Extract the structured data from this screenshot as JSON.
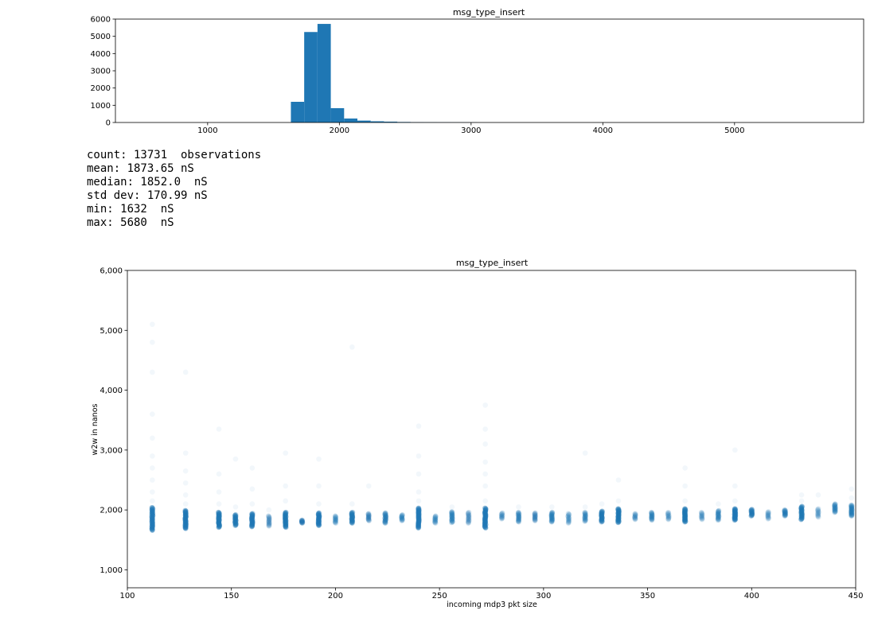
{
  "colors": {
    "bar": "#1f77b4",
    "point": "#1f77b4",
    "axis": "#000000"
  },
  "chart_data": [
    {
      "type": "bar",
      "title": "msg_type_insert",
      "xlabel": "",
      "ylabel": "",
      "xlim": [
        300,
        5980
      ],
      "ylim": [
        0,
        6000
      ],
      "xticks": [
        1000,
        2000,
        3000,
        4000,
        5000
      ],
      "yticks": [
        0,
        1000,
        2000,
        3000,
        4000,
        5000,
        6000
      ],
      "bin_edges": [
        1632,
        1733,
        1834,
        1935,
        2036,
        2137,
        2238,
        2339,
        2440,
        2541,
        2642,
        2743,
        2844,
        2945,
        3046
      ],
      "values": [
        1200,
        5250,
        5720,
        830,
        230,
        110,
        70,
        50,
        30,
        20,
        15,
        12,
        10,
        8
      ]
    },
    {
      "type": "scatter",
      "title": "msg_type_insert",
      "xlabel": "incoming mdp3 pkt size",
      "ylabel": "w2w in nanos",
      "xlim": [
        100,
        450
      ],
      "ylim": [
        700,
        6000
      ],
      "xticks": [
        100,
        150,
        200,
        250,
        300,
        350,
        400,
        450
      ],
      "yticks": [
        1000,
        2000,
        3000,
        4000,
        5000,
        6000
      ],
      "ytick_labels": [
        "1,000",
        "2,000",
        "3,000",
        "4,000",
        "5,000",
        "6,000"
      ],
      "clusters": [
        {
          "x": 112,
          "lo": 1660,
          "hi": 2040,
          "density": 1.0,
          "tail": [
            2150,
            2300,
            2500,
            2700,
            2900,
            3200,
            3600,
            4300,
            4800,
            5100
          ]
        },
        {
          "x": 128,
          "lo": 1690,
          "hi": 1990,
          "density": 1.0,
          "tail": [
            2100,
            2250,
            2450,
            2650,
            2950,
            4300
          ]
        },
        {
          "x": 144,
          "lo": 1710,
          "hi": 1960,
          "density": 0.9,
          "tail": [
            2100,
            2300,
            2600,
            3350
          ]
        },
        {
          "x": 152,
          "lo": 1740,
          "hi": 1920,
          "density": 0.7,
          "tail": [
            2050,
            2850
          ]
        },
        {
          "x": 160,
          "lo": 1720,
          "hi": 1940,
          "density": 0.8,
          "tail": [
            2100,
            2350,
            2700
          ]
        },
        {
          "x": 168,
          "lo": 1730,
          "hi": 1900,
          "density": 0.3,
          "tail": [
            2000
          ]
        },
        {
          "x": 176,
          "lo": 1710,
          "hi": 1960,
          "density": 0.85,
          "tail": [
            2150,
            2400,
            2950
          ]
        },
        {
          "x": 184,
          "lo": 1780,
          "hi": 1830,
          "density": 0.3,
          "tail": []
        },
        {
          "x": 192,
          "lo": 1740,
          "hi": 1950,
          "density": 0.8,
          "tail": [
            2100,
            2400,
            2850
          ]
        },
        {
          "x": 200,
          "lo": 1780,
          "hi": 1900,
          "density": 0.25,
          "tail": []
        },
        {
          "x": 208,
          "lo": 1780,
          "hi": 1960,
          "density": 0.7,
          "tail": [
            2100,
            4720
          ]
        },
        {
          "x": 216,
          "lo": 1820,
          "hi": 1940,
          "density": 0.3,
          "tail": [
            2400
          ]
        },
        {
          "x": 224,
          "lo": 1780,
          "hi": 1950,
          "density": 0.5,
          "tail": []
        },
        {
          "x": 232,
          "lo": 1820,
          "hi": 1920,
          "density": 0.25,
          "tail": []
        },
        {
          "x": 240,
          "lo": 1700,
          "hi": 2030,
          "density": 1.0,
          "tail": [
            2150,
            2300,
            2600,
            2900,
            3400
          ]
        },
        {
          "x": 248,
          "lo": 1780,
          "hi": 1900,
          "density": 0.25,
          "tail": []
        },
        {
          "x": 256,
          "lo": 1790,
          "hi": 1970,
          "density": 0.45,
          "tail": [
            2050
          ]
        },
        {
          "x": 264,
          "lo": 1780,
          "hi": 1960,
          "density": 0.3,
          "tail": []
        },
        {
          "x": 272,
          "lo": 1700,
          "hi": 2030,
          "density": 1.0,
          "tail": [
            2150,
            2400,
            2600,
            2800,
            3100,
            3350,
            3750
          ]
        },
        {
          "x": 280,
          "lo": 1850,
          "hi": 1950,
          "density": 0.2,
          "tail": []
        },
        {
          "x": 288,
          "lo": 1800,
          "hi": 1960,
          "density": 0.4,
          "tail": [
            2050
          ]
        },
        {
          "x": 296,
          "lo": 1820,
          "hi": 1950,
          "density": 0.3,
          "tail": []
        },
        {
          "x": 304,
          "lo": 1800,
          "hi": 1960,
          "density": 0.45,
          "tail": [
            2050
          ]
        },
        {
          "x": 312,
          "lo": 1780,
          "hi": 1940,
          "density": 0.25,
          "tail": []
        },
        {
          "x": 320,
          "lo": 1810,
          "hi": 1960,
          "density": 0.35,
          "tail": [
            2050,
            2950
          ]
        },
        {
          "x": 328,
          "lo": 1800,
          "hi": 1980,
          "density": 0.7,
          "tail": [
            2100
          ]
        },
        {
          "x": 336,
          "lo": 1790,
          "hi": 2020,
          "density": 0.85,
          "tail": [
            2150,
            2500
          ]
        },
        {
          "x": 344,
          "lo": 1840,
          "hi": 1940,
          "density": 0.2,
          "tail": []
        },
        {
          "x": 352,
          "lo": 1830,
          "hi": 1960,
          "density": 0.35,
          "tail": []
        },
        {
          "x": 360,
          "lo": 1840,
          "hi": 1960,
          "density": 0.2,
          "tail": []
        },
        {
          "x": 368,
          "lo": 1800,
          "hi": 2020,
          "density": 0.85,
          "tail": [
            2150,
            2400,
            2700
          ]
        },
        {
          "x": 376,
          "lo": 1840,
          "hi": 1960,
          "density": 0.2,
          "tail": []
        },
        {
          "x": 384,
          "lo": 1830,
          "hi": 1990,
          "density": 0.4,
          "tail": [
            2100
          ]
        },
        {
          "x": 392,
          "lo": 1830,
          "hi": 2020,
          "density": 0.8,
          "tail": [
            2150,
            2400,
            3000
          ]
        },
        {
          "x": 400,
          "lo": 1900,
          "hi": 2010,
          "density": 0.5,
          "tail": []
        },
        {
          "x": 408,
          "lo": 1850,
          "hi": 1970,
          "density": 0.2,
          "tail": []
        },
        {
          "x": 416,
          "lo": 1900,
          "hi": 2000,
          "density": 0.4,
          "tail": []
        },
        {
          "x": 424,
          "lo": 1840,
          "hi": 2060,
          "density": 0.75,
          "tail": [
            2150,
            2250
          ]
        },
        {
          "x": 432,
          "lo": 1880,
          "hi": 2020,
          "density": 0.2,
          "tail": [
            2250
          ]
        },
        {
          "x": 440,
          "lo": 1960,
          "hi": 2100,
          "density": 0.4,
          "tail": []
        },
        {
          "x": 448,
          "lo": 1900,
          "hi": 2080,
          "density": 0.55,
          "tail": [
            2200,
            2350
          ]
        }
      ]
    }
  ],
  "stats": {
    "lines": [
      "count: 13731  observations",
      "mean: 1873.65 nS",
      "median: 1852.0  nS",
      "std dev: 170.99 nS",
      "min: 1632  nS",
      "max: 5680  nS"
    ]
  }
}
